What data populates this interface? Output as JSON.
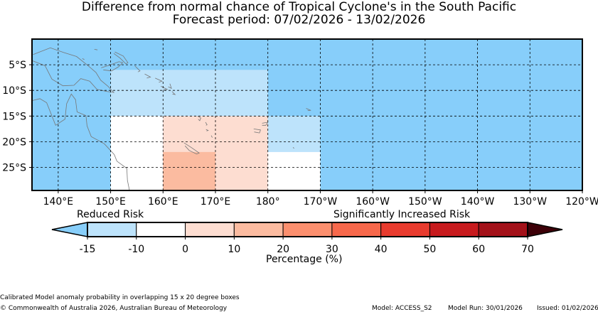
{
  "title": {
    "line1": "Difference from normal chance of Tropical Cyclone's in the South Pacific",
    "line2": "Forecast period: 07/02/2026 - 13/02/2026"
  },
  "map": {
    "lon_range": [
      135,
      240
    ],
    "lat_range": [
      -29.5,
      0
    ],
    "x_ticks": [
      "140°E",
      "150°E",
      "160°E",
      "170°E",
      "180°",
      "170°W",
      "160°W",
      "150°W",
      "140°W",
      "130°W",
      "120°W"
    ],
    "x_tick_lons": [
      140,
      150,
      160,
      170,
      180,
      190,
      200,
      210,
      220,
      230,
      240
    ],
    "y_ticks": [
      "5°S",
      "10°S",
      "15°S",
      "20°S",
      "25°S"
    ],
    "y_tick_lats": [
      -5,
      -10,
      -15,
      -20,
      -25
    ],
    "background_color": "#87cefa",
    "cells": [
      {
        "lon": [
          150,
          180
        ],
        "lat": [
          -6,
          -15
        ],
        "color": "#bde3fb"
      },
      {
        "lon": [
          150,
          160
        ],
        "lat": [
          -15,
          -29.5
        ],
        "color": "#ffffff"
      },
      {
        "lon": [
          160,
          180
        ],
        "lat": [
          -15,
          -29.5
        ],
        "color": "#fdddd1"
      },
      {
        "lon": [
          160,
          170
        ],
        "lat": [
          -22,
          -29.5
        ],
        "color": "#fbbba0"
      },
      {
        "lon": [
          180,
          190
        ],
        "lat": [
          -15,
          -22
        ],
        "color": "#bde3fb"
      },
      {
        "lon": [
          180,
          190
        ],
        "lat": [
          -22,
          -29.5
        ],
        "color": "#ffffff"
      }
    ]
  },
  "colorbar": {
    "reduced_label": "Reduced Risk",
    "increased_label": "Significantly Increased Risk",
    "tick_labels": [
      "-15",
      "-10",
      "0",
      "10",
      "20",
      "30",
      "40",
      "50",
      "60",
      "70"
    ],
    "under_color": "#87cefa",
    "over_color": "#3d0008",
    "segment_colors": [
      "#bde3fb",
      "#ffffff",
      "#fdddd1",
      "#fbbba0",
      "#fb8f6e",
      "#f7684b",
      "#e83b2e",
      "#c71a1d",
      "#a31119"
    ],
    "label": "Percentage (%)"
  },
  "footer": {
    "note": "Calibrated Model anomaly probability in overlapping 15 x 20 degree boxes",
    "copyright": "© Commonwealth of Australia 2026, Australian Bureau of Meteorology",
    "model": "Model: ACCESS_S2",
    "model_run": "Model Run: 30/01/2026",
    "issued": "Issued: 01/02/2026"
  }
}
